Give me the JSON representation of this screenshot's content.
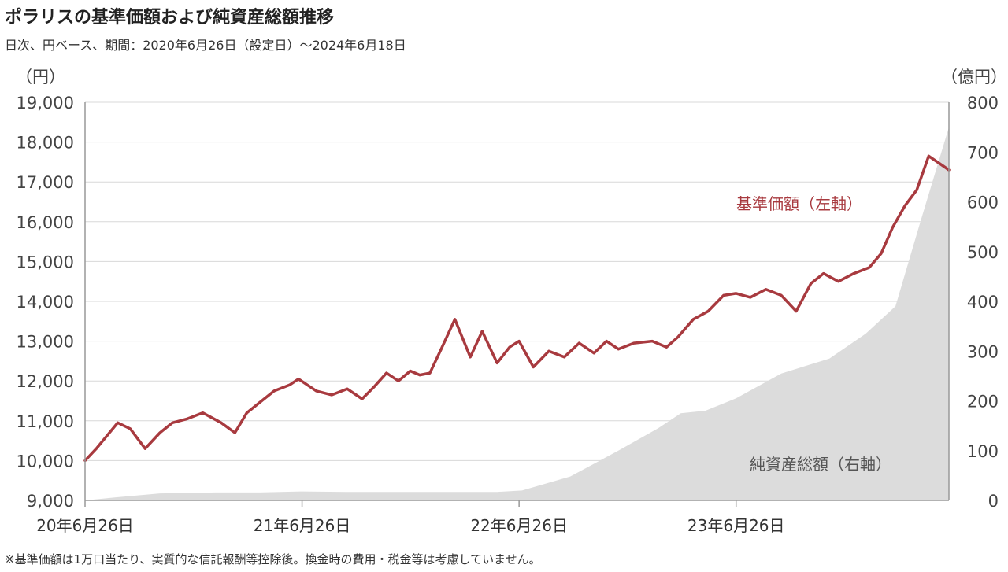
{
  "title": "ポラリスの基準価額および純資産総額推移",
  "subtitle": "日次、円ベース、期間：2020年6月26日（設定日）～2024年6月18日",
  "footnote": "※基準価額は1万口当たり、実質的な信託報酬等控除後。換金時の費用・税金等は考慮していません。",
  "chart_data": {
    "type": "line",
    "left_unit": "（円）",
    "right_unit": "（億円）",
    "x_tick_labels": [
      "20年6月26日",
      "21年6月26日",
      "22年6月26日",
      "23年6月26日"
    ],
    "y_left_ticks": [
      "9,000",
      "10,000",
      "11,000",
      "12,000",
      "13,000",
      "14,000",
      "15,000",
      "16,000",
      "17,000",
      "18,000",
      "19,000"
    ],
    "y_right_ticks": [
      "0",
      "100",
      "200",
      "300",
      "400",
      "500",
      "600",
      "700",
      "800"
    ],
    "ylim_left": [
      9000,
      19000
    ],
    "ylim_right": [
      0,
      800
    ],
    "grid": true,
    "series_labels": {
      "nav": "基準価額（左軸）",
      "aum": "純資産総額（右軸）"
    },
    "colors": {
      "nav": "#a83a3f",
      "aum": "#dcdcdc",
      "grid": "#d8d8d8",
      "axis": "#999999"
    },
    "series": [
      {
        "name": "基準価額（左軸）",
        "axis": "left",
        "style": "line",
        "x": [
          "2020-06-26",
          "2020-07-15",
          "2020-08-20",
          "2020-09-10",
          "2020-10-05",
          "2020-10-30",
          "2020-11-20",
          "2020-12-15",
          "2021-01-10",
          "2021-02-10",
          "2021-03-05",
          "2021-03-25",
          "2021-04-15",
          "2021-05-10",
          "2021-06-05",
          "2021-06-20",
          "2021-07-20",
          "2021-08-15",
          "2021-09-10",
          "2021-10-05",
          "2021-10-25",
          "2021-11-15",
          "2021-12-05",
          "2021-12-25",
          "2022-01-10",
          "2022-01-27",
          "2022-02-15",
          "2022-03-10",
          "2022-04-05",
          "2022-04-25",
          "2022-05-20",
          "2022-06-10",
          "2022-06-26",
          "2022-07-20",
          "2022-08-15",
          "2022-09-10",
          "2022-10-05",
          "2022-10-30",
          "2022-11-20",
          "2022-12-10",
          "2023-01-05",
          "2023-02-05",
          "2023-03-01",
          "2023-03-20",
          "2023-04-15",
          "2023-05-10",
          "2023-06-05",
          "2023-06-26",
          "2023-07-20",
          "2023-08-15",
          "2023-09-10",
          "2023-10-05",
          "2023-10-30",
          "2023-11-20",
          "2023-12-15",
          "2024-01-10",
          "2024-02-05",
          "2024-02-25",
          "2024-03-15",
          "2024-04-05",
          "2024-04-25",
          "2024-05-15",
          "2024-06-18"
        ],
        "values": [
          10000,
          10300,
          10950,
          10800,
          10300,
          10700,
          10950,
          11050,
          11200,
          10950,
          10700,
          11200,
          11450,
          11750,
          11900,
          12050,
          11750,
          11650,
          11800,
          11550,
          11850,
          12200,
          12000,
          12250,
          12150,
          12200,
          12800,
          13550,
          12600,
          13250,
          12450,
          12850,
          13000,
          12350,
          12750,
          12600,
          12950,
          12700,
          13000,
          12800,
          12950,
          13000,
          12850,
          13100,
          13550,
          13750,
          14150,
          14200,
          14100,
          14300,
          14150,
          13750,
          14450,
          14700,
          14500,
          14700,
          14850,
          15200,
          15850,
          16400,
          16800,
          17650,
          17300
        ]
      },
      {
        "name": "純資産総額（右軸）",
        "axis": "right",
        "style": "area",
        "x": [
          "2020-06-26",
          "2020-08-15",
          "2020-10-30",
          "2021-01-30",
          "2021-04-15",
          "2021-06-26",
          "2021-09-10",
          "2021-12-15",
          "2022-03-10",
          "2022-05-20",
          "2022-07-01",
          "2022-09-20",
          "2022-12-10",
          "2023-02-15",
          "2023-03-25",
          "2023-05-05",
          "2023-06-26",
          "2023-09-10",
          "2023-11-30",
          "2024-01-30",
          "2024-03-20",
          "2024-05-01",
          "2024-06-18"
        ],
        "values": [
          0,
          6,
          14,
          16,
          16,
          18,
          17,
          17,
          17,
          17,
          20,
          48,
          100,
          145,
          175,
          180,
          205,
          255,
          285,
          335,
          390,
          560,
          750
        ]
      }
    ]
  }
}
